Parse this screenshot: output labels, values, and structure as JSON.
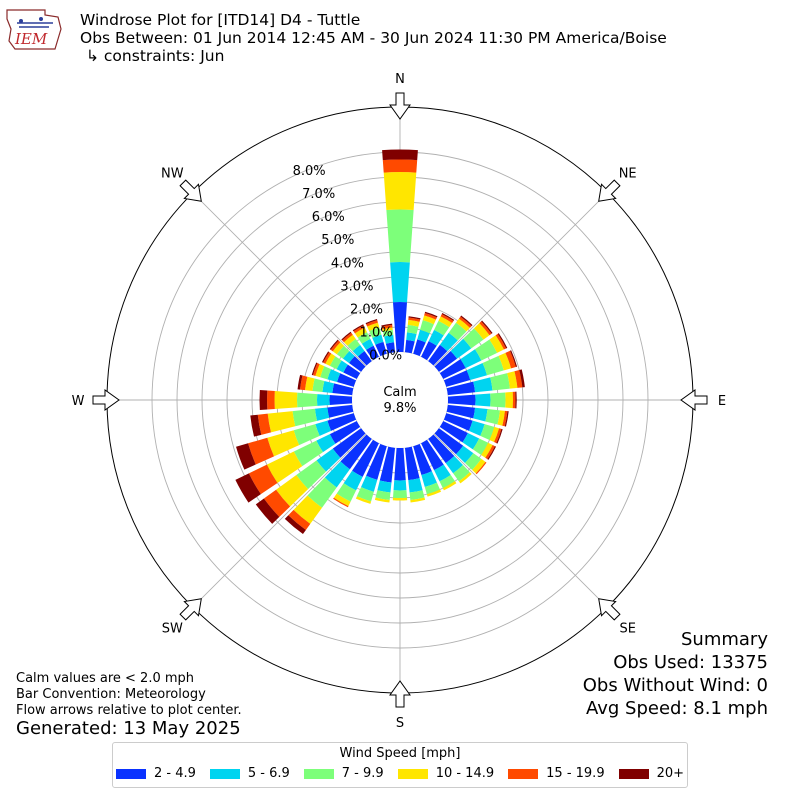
{
  "header": {
    "title": "Windrose Plot for [ITD14] D4 - Tuttle",
    "obs_between": "Obs Between: 01 Jun 2014 12:45 AM - 30 Jun 2024 11:30 PM America/Boise",
    "constraints": "↳ constraints: Jun"
  },
  "logo": {
    "text": "IEM"
  },
  "notes": {
    "calm_def": "Calm values are < 2.0 mph",
    "bar_convention": "Bar Convention: Meteorology",
    "flow_arrows": "Flow arrows relative to plot center.",
    "generated": "Generated: 13 May 2025"
  },
  "summary": {
    "title": "Summary",
    "obs_used": "Obs Used: 13375",
    "obs_without_wind": "Obs Without Wind: 0",
    "avg_speed": "Avg Speed: 8.1 mph"
  },
  "legend": {
    "title": "Wind Speed [mph]",
    "items": [
      {
        "label": "2 - 4.9",
        "color": "#0a32ff"
      },
      {
        "label": "5 - 6.9",
        "color": "#00d4f0"
      },
      {
        "label": "7 - 9.9",
        "color": "#7dff7a"
      },
      {
        "label": "10 - 14.9",
        "color": "#ffe600"
      },
      {
        "label": "15 - 19.9",
        "color": "#ff4a00"
      },
      {
        "label": "20+",
        "color": "#800000"
      }
    ]
  },
  "chart_data": {
    "type": "windrose",
    "calm": {
      "label": "Calm",
      "value": "9.8%"
    },
    "radial_ticks": [
      "0.0%",
      "1.0%",
      "2.0%",
      "3.0%",
      "4.0%",
      "5.0%",
      "6.0%",
      "7.0%",
      "8.0%"
    ],
    "rmax": 9.8,
    "calm_percent": 9.8,
    "directions": [
      "N",
      "NE",
      "E",
      "SE",
      "S",
      "SW",
      "W",
      "NW"
    ],
    "direction_angles_deg": [
      0,
      45,
      90,
      135,
      180,
      225,
      270,
      315
    ],
    "sector_centers_deg": [
      0,
      10,
      20,
      30,
      40,
      50,
      60,
      70,
      80,
      90,
      100,
      110,
      120,
      130,
      140,
      150,
      160,
      170,
      180,
      190,
      200,
      210,
      220,
      230,
      240,
      250,
      260,
      270,
      280,
      290,
      300,
      310,
      320,
      330,
      340,
      350
    ],
    "series": [
      {
        "name": "2 - 4.9",
        "values": [
          2.0,
          0.5,
          0.6,
          0.7,
          0.8,
          0.9,
          1.0,
          1.0,
          1.1,
          1.1,
          1.1,
          1.1,
          1.1,
          1.2,
          1.2,
          1.2,
          1.2,
          1.3,
          1.3,
          1.4,
          1.4,
          1.5,
          1.5,
          1.4,
          1.2,
          1.1,
          1.0,
          0.9,
          0.8,
          0.7,
          0.6,
          0.6,
          0.5,
          0.5,
          0.5,
          0.4
        ]
      },
      {
        "name": "5 - 6.9",
        "values": [
          1.6,
          0.3,
          0.4,
          0.5,
          0.6,
          0.7,
          0.7,
          0.7,
          0.7,
          0.6,
          0.5,
          0.5,
          0.5,
          0.5,
          0.5,
          0.5,
          0.5,
          0.5,
          0.4,
          0.4,
          0.5,
          0.6,
          0.9,
          0.8,
          0.6,
          0.5,
          0.5,
          0.5,
          0.4,
          0.4,
          0.3,
          0.3,
          0.3,
          0.3,
          0.3,
          0.3
        ]
      },
      {
        "name": "7 - 9.9",
        "values": [
          2.1,
          0.3,
          0.4,
          0.4,
          0.5,
          0.6,
          0.7,
          0.7,
          0.7,
          0.6,
          0.5,
          0.4,
          0.4,
          0.4,
          0.4,
          0.3,
          0.3,
          0.3,
          0.3,
          0.3,
          0.4,
          0.5,
          1.0,
          1.0,
          1.0,
          0.9,
          0.9,
          0.8,
          0.4,
          0.3,
          0.3,
          0.3,
          0.3,
          0.3,
          0.3,
          0.2
        ]
      },
      {
        "name": "10 - 14.9",
        "values": [
          1.5,
          0.2,
          0.2,
          0.2,
          0.2,
          0.3,
          0.3,
          0.3,
          0.3,
          0.3,
          0.2,
          0.2,
          0.2,
          0.2,
          0.1,
          0.1,
          0.1,
          0.1,
          0.1,
          0.1,
          0.1,
          0.2,
          0.8,
          1.0,
          1.2,
          1.1,
          1.0,
          0.9,
          0.3,
          0.2,
          0.2,
          0.2,
          0.2,
          0.2,
          0.2,
          0.1
        ]
      },
      {
        "name": "15 - 19.9",
        "values": [
          0.5,
          0.1,
          0.1,
          0.1,
          0.1,
          0.1,
          0.1,
          0.2,
          0.2,
          0.1,
          0.1,
          0.1,
          0.1,
          0.05,
          0.0,
          0.0,
          0.0,
          0.0,
          0.0,
          0.0,
          0.0,
          0.05,
          0.3,
          0.6,
          0.8,
          0.8,
          0.4,
          0.3,
          0.2,
          0.1,
          0.1,
          0.1,
          0.1,
          0.1,
          0.1,
          0.1
        ]
      },
      {
        "name": "20+",
        "values": [
          0.4,
          0.05,
          0.05,
          0.05,
          0.05,
          0.05,
          0.05,
          0.05,
          0.1,
          0.05,
          0.05,
          0.05,
          0.05,
          0.0,
          0.0,
          0.0,
          0.0,
          0.0,
          0.0,
          0.0,
          0.0,
          0.0,
          0.2,
          0.4,
          0.6,
          0.5,
          0.3,
          0.3,
          0.1,
          0.05,
          0.05,
          0.05,
          0.05,
          0.05,
          0.05,
          0.05
        ]
      }
    ]
  }
}
